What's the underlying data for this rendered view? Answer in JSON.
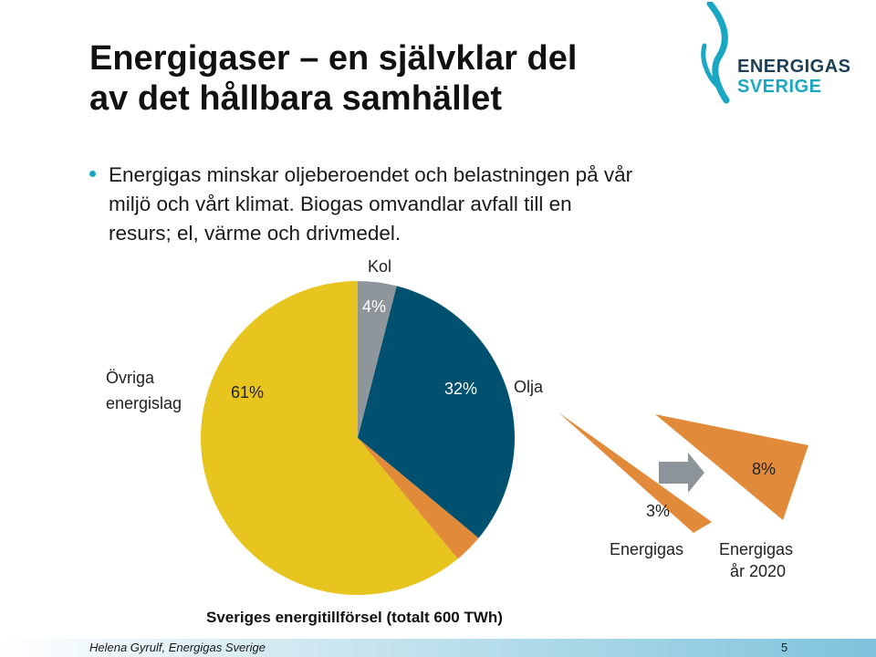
{
  "slide": {
    "title_line1": "Energigaser – en självklar del",
    "title_line2": "av det hållbara samhället",
    "bullet": "Energigas minskar oljeberoendet och belastningen på vår miljö och vårt klimat. Biogas omvandlar avfall till en resurs; el, värme och drivmedel.",
    "caption": "Sveriges energitillförsel (totalt 600 TWh)"
  },
  "logo": {
    "line1": "ENERGIGAS",
    "line2": "SVERIGE",
    "icon": "flame-icon",
    "colors": {
      "dark": "#1d3f55",
      "accent": "#1aa7c4"
    }
  },
  "footer": {
    "author": "Helena Gyrulf, Energigas Sverige",
    "page": "5"
  },
  "colors": {
    "bullet": "#1aa7c4",
    "kol": "#8e969c",
    "olja": "#00506f",
    "ovriga": "#e8c51e",
    "energigas": "#e08a3a",
    "arrow": "#8b9499"
  },
  "chart_data": {
    "type": "pie",
    "title": "Sveriges energitillförsel (totalt 600 TWh)",
    "slices": [
      {
        "name": "Kol",
        "value": 4,
        "label": "4%"
      },
      {
        "name": "Olja",
        "value": 32,
        "label": "32%"
      },
      {
        "name": "Energigas",
        "value": 3,
        "label": "3%"
      },
      {
        "name": "Övriga energislag",
        "value": 61,
        "label": "61%"
      }
    ],
    "energigas_2020": {
      "name": "Energigas år 2020",
      "value": 8,
      "label": "8%"
    },
    "labels": {
      "kol": "Kol",
      "olja": "Olja",
      "ovriga_line1": "Övriga",
      "ovriga_line2": "energislag",
      "energigas": "Energigas",
      "energigas2020_line1": "Energigas",
      "energigas2020_line2": "år 2020"
    }
  }
}
